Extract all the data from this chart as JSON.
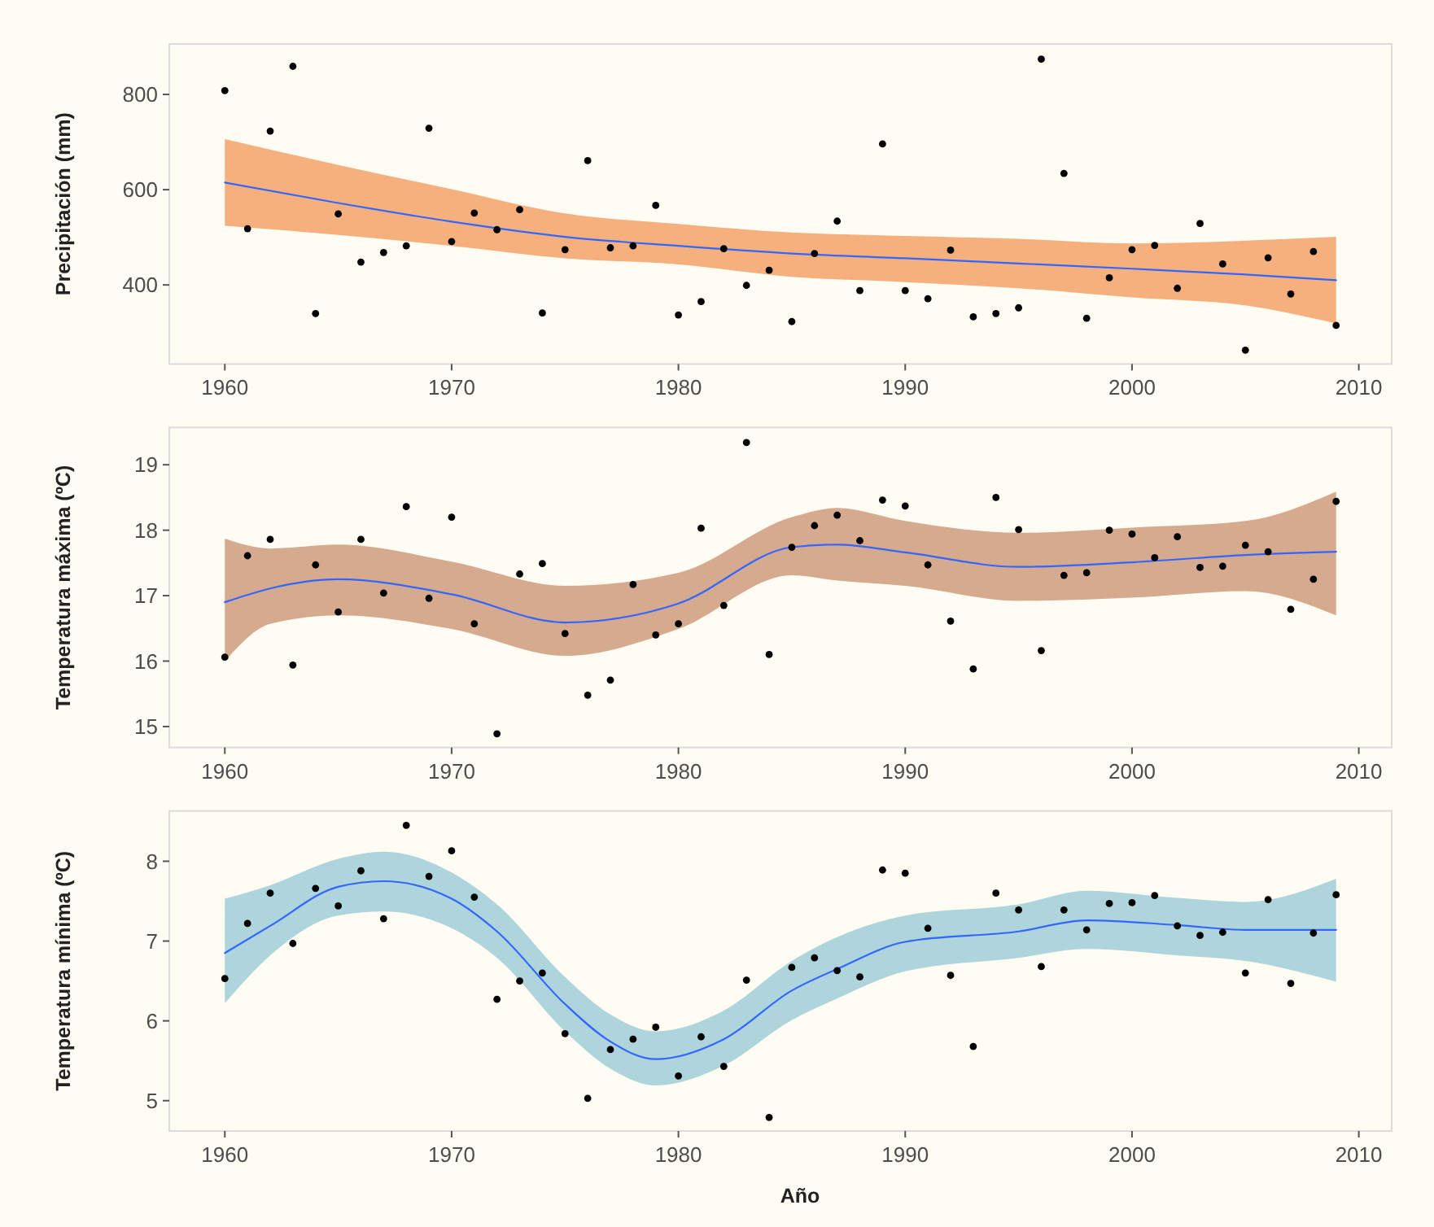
{
  "chart_data": [
    {
      "type": "scatter",
      "ylabel": "Precipitación (mm)",
      "x": [
        1960,
        1961,
        1962,
        1963,
        1964,
        1965,
        1966,
        1967,
        1968,
        1969,
        1970,
        1971,
        1972,
        1973,
        1974,
        1975,
        1976,
        1977,
        1978,
        1979,
        1980,
        1981,
        1982,
        1983,
        1984,
        1985,
        1986,
        1987,
        1988,
        1989,
        1990,
        1991,
        1992,
        1993,
        1994,
        1995,
        1996,
        1997,
        1998,
        1999,
        2000,
        2001,
        2002,
        2003,
        2004,
        2005,
        2006,
        2007,
        2008,
        2009
      ],
      "series": [
        {
          "color": "#000000",
          "marker": "circle",
          "values": [
            808,
            518,
            723,
            859,
            340,
            549,
            448,
            468,
            482,
            729,
            491,
            551,
            516,
            558,
            341,
            474,
            661,
            478,
            482,
            567,
            337,
            365,
            476,
            399,
            431,
            323,
            466,
            534,
            388,
            696,
            388,
            371,
            473,
            333,
            340,
            352,
            874,
            634,
            330,
            415,
            474,
            483,
            393,
            529,
            444,
            263,
            457,
            381,
            470,
            315
          ]
        },
        {
          "type": "line",
          "color": "#3366ff",
          "x": [
            1960,
            1965,
            1970,
            1975,
            1980,
            1985,
            1990,
            1995,
            2000,
            2005,
            2009
          ],
          "values": [
            615,
            572,
            533,
            501,
            482,
            466,
            456,
            445,
            434,
            422,
            410
          ],
          "upper": [
            706,
            652,
            601,
            550,
            528,
            510,
            503,
            497,
            487,
            493,
            501
          ],
          "lower": [
            524,
            505,
            482,
            456,
            443,
            417,
            406,
            393,
            374,
            357,
            319
          ]
        }
      ],
      "xlim": [
        1957.55,
        2011.45
      ],
      "xticks": [
        1960,
        1970,
        1980,
        1990,
        2000,
        2010
      ],
      "ylim": [
        234,
        906
      ],
      "yticks": [
        400,
        600,
        800
      ]
    },
    {
      "type": "scatter",
      "ylabel": "Temperatura máxima (ºC)",
      "x": [
        1960,
        1961,
        1962,
        1963,
        1964,
        1965,
        1966,
        1967,
        1968,
        1969,
        1970,
        1971,
        1972,
        1973,
        1974,
        1975,
        1976,
        1977,
        1978,
        1979,
        1980,
        1981,
        1982,
        1983,
        1984,
        1985,
        1986,
        1987,
        1988,
        1989,
        1990,
        1991,
        1992,
        1993,
        1994,
        1995,
        1996,
        1997,
        1998,
        1999,
        2000,
        2001,
        2002,
        2003,
        2004,
        2005,
        2006,
        2007,
        2008,
        2009
      ],
      "series": [
        {
          "color": "#000000",
          "marker": "circle",
          "values": [
            16.06,
            17.61,
            17.86,
            15.94,
            17.47,
            16.75,
            17.86,
            17.04,
            18.36,
            16.96,
            18.2,
            16.57,
            14.89,
            17.33,
            17.49,
            16.42,
            15.48,
            15.71,
            17.17,
            16.4,
            16.57,
            18.03,
            16.85,
            19.34,
            16.1,
            17.74,
            18.07,
            18.23,
            17.84,
            18.46,
            18.37,
            17.47,
            16.61,
            15.88,
            18.5,
            18.01,
            16.16,
            17.31,
            17.35,
            18.0,
            17.94,
            17.58,
            17.9,
            17.43,
            17.45,
            17.77,
            17.67,
            16.79,
            17.25,
            18.44
          ]
        },
        {
          "type": "line",
          "color": "#3366ff",
          "x": [
            1960,
            1962,
            1965,
            1970,
            1975,
            1980,
            1985,
            1987,
            1990,
            1995,
            2000,
            2005,
            2009
          ],
          "values": [
            16.9,
            17.11,
            17.25,
            17.02,
            16.59,
            16.88,
            17.74,
            17.78,
            17.66,
            17.44,
            17.51,
            17.62,
            17.67
          ],
          "upper": [
            17.87,
            17.72,
            17.78,
            17.52,
            17.15,
            17.35,
            18.2,
            18.34,
            18.14,
            17.96,
            18.04,
            18.14,
            18.59
          ],
          "lower": [
            16.0,
            16.57,
            16.7,
            16.49,
            16.08,
            16.49,
            17.31,
            17.23,
            17.15,
            16.92,
            16.97,
            17.07,
            16.7
          ]
        }
      ],
      "xlim": [
        1957.55,
        2011.45
      ],
      "xticks": [
        1960,
        1970,
        1980,
        1990,
        2000,
        2010
      ],
      "ylim": [
        14.68,
        19.57
      ],
      "yticks": [
        15,
        16,
        17,
        18,
        19
      ]
    },
    {
      "type": "scatter",
      "xlabel": "Año",
      "ylabel": "Temperatura mínima (ºC)",
      "x": [
        1960,
        1961,
        1962,
        1963,
        1964,
        1965,
        1966,
        1967,
        1968,
        1969,
        1970,
        1971,
        1972,
        1973,
        1974,
        1975,
        1976,
        1977,
        1978,
        1979,
        1980,
        1981,
        1982,
        1983,
        1984,
        1985,
        1986,
        1987,
        1988,
        1989,
        1990,
        1991,
        1992,
        1993,
        1994,
        1995,
        1996,
        1997,
        1998,
        1999,
        2000,
        2001,
        2002,
        2003,
        2004,
        2005,
        2006,
        2007,
        2008,
        2009
      ],
      "series": [
        {
          "color": "#000000",
          "marker": "circle",
          "values": [
            6.53,
            7.22,
            7.6,
            6.97,
            7.66,
            7.44,
            7.88,
            7.28,
            8.45,
            7.81,
            8.13,
            7.55,
            6.27,
            6.5,
            6.6,
            5.84,
            5.03,
            5.64,
            5.77,
            5.92,
            5.31,
            5.8,
            5.43,
            6.51,
            4.79,
            6.67,
            6.79,
            6.63,
            6.55,
            7.89,
            7.85,
            7.16,
            6.57,
            5.68,
            7.6,
            7.39,
            6.68,
            7.39,
            7.14,
            7.47,
            7.48,
            7.57,
            7.19,
            7.07,
            7.11,
            6.6,
            7.52,
            6.47,
            7.1,
            7.58
          ]
        },
        {
          "type": "line",
          "color": "#3366ff",
          "x": [
            1960,
            1962,
            1965,
            1967,
            1970,
            1972,
            1975,
            1977,
            1979,
            1982,
            1985,
            1987,
            1990,
            1995,
            1998,
            2002,
            2005,
            2009
          ],
          "values": [
            6.85,
            7.19,
            7.68,
            7.75,
            7.53,
            7.12,
            6.21,
            5.74,
            5.52,
            5.77,
            6.38,
            6.65,
            6.99,
            7.12,
            7.26,
            7.2,
            7.14,
            7.14
          ],
          "upper": [
            7.53,
            7.7,
            8.03,
            8.12,
            7.86,
            7.46,
            6.55,
            6.08,
            5.87,
            6.13,
            6.75,
            7.05,
            7.32,
            7.46,
            7.63,
            7.54,
            7.49,
            7.78
          ],
          "lower": [
            6.22,
            6.82,
            7.32,
            7.37,
            7.16,
            6.79,
            5.87,
            5.4,
            5.19,
            5.44,
            6.01,
            6.28,
            6.62,
            6.79,
            6.9,
            6.82,
            6.75,
            6.49
          ]
        }
      ],
      "xlim": [
        1957.55,
        2011.45
      ],
      "xticks": [
        1960,
        1970,
        1980,
        1990,
        2000,
        2010
      ],
      "ylim": [
        4.62,
        8.63
      ],
      "yticks": [
        5,
        6,
        7,
        8
      ]
    }
  ]
}
